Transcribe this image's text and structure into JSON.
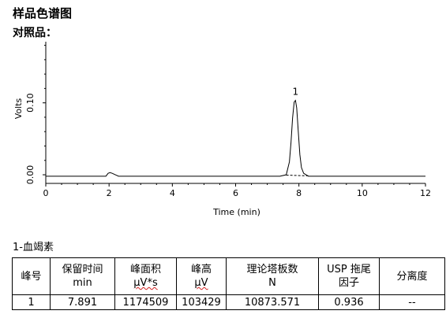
{
  "page_title": "样品色谱图",
  "sample_heading": "对照品：",
  "compound_label": "1-血竭素",
  "chart_data": {
    "type": "line",
    "xlabel": "Time (min)",
    "ylabel": "Volts",
    "xlim": [
      0,
      12
    ],
    "ylim": [
      -0.012,
      0.185
    ],
    "x_ticks": [
      "0",
      "2",
      "4",
      "6",
      "8",
      "10",
      "12"
    ],
    "y_ticks": [
      "0.00",
      "0.10"
    ],
    "grid": false,
    "series": [
      {
        "x": [
          0,
          1.9,
          1.97,
          2.03,
          2.1,
          2.2,
          2.3,
          7.4,
          7.6,
          7.7,
          7.75,
          7.8,
          7.85,
          7.891,
          7.93,
          7.98,
          8.03,
          8.08,
          8.15,
          8.3,
          8.7,
          12
        ],
        "y": [
          -0.002,
          -0.002,
          0.002,
          0.003,
          0.002,
          0.0,
          -0.002,
          -0.002,
          0.0,
          0.018,
          0.045,
          0.079,
          0.101,
          0.1034,
          0.093,
          0.06,
          0.028,
          0.01,
          0.002,
          -0.002,
          -0.002,
          -0.002
        ]
      }
    ],
    "baseline_dashed": {
      "x": [
        7.6,
        8.3
      ],
      "y": [
        -0.0005,
        -0.0015
      ]
    },
    "peak_labels": [
      {
        "x": 7.891,
        "y": 0.1034,
        "label": "1"
      }
    ]
  },
  "table": {
    "headers": [
      [
        "峰号"
      ],
      [
        "保留时间",
        "min"
      ],
      [
        "峰面积",
        "μV*s"
      ],
      [
        "峰高",
        "μV"
      ],
      [
        "理论塔板数",
        "N"
      ],
      [
        "USP 拖尾",
        "因子"
      ],
      [
        "分离度"
      ]
    ],
    "rows": [
      [
        "1",
        "7.891",
        "1174509",
        "103429",
        "10873.571",
        "0.936",
        "--"
      ]
    ]
  }
}
